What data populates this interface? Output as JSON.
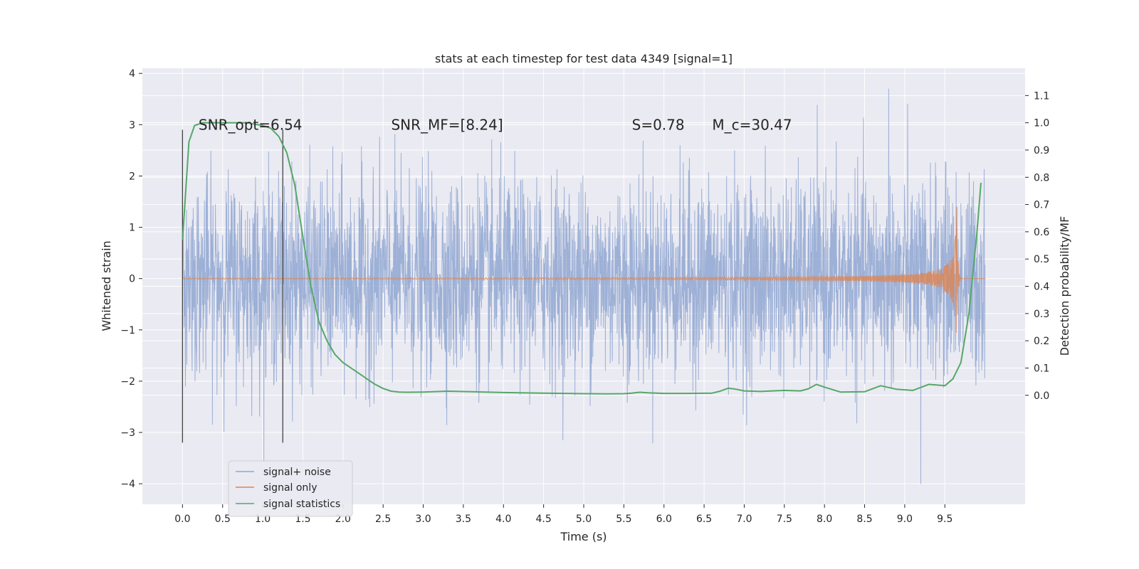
{
  "chart_data": {
    "type": "line",
    "title": "stats at each timestep for test data 4349 [signal=1]",
    "xlabel": "Time (s)",
    "ylabel": "Whitened strain",
    "y2label": "Detection probability/MF",
    "xlim": [
      -0.5,
      10.5
    ],
    "ylim": [
      -4.4,
      4.1
    ],
    "y2lim": [
      -0.4,
      1.2
    ],
    "xticks": [
      "0.0",
      "0.5",
      "1.0",
      "1.5",
      "2.0",
      "2.5",
      "3.0",
      "3.5",
      "4.0",
      "4.5",
      "5.0",
      "5.5",
      "6.0",
      "6.5",
      "7.0",
      "7.5",
      "8.0",
      "8.5",
      "9.0",
      "9.5"
    ],
    "yticks": [
      "−4",
      "−3",
      "−2",
      "−1",
      "0",
      "1",
      "2",
      "3",
      "4"
    ],
    "y2ticks": [
      "0.0",
      "0.1",
      "0.2",
      "0.3",
      "0.4",
      "0.5",
      "0.6",
      "0.7",
      "0.8",
      "0.9",
      "1.0",
      "1.1"
    ],
    "grid": true,
    "legend_position": "lower-left",
    "annotations": [
      {
        "text": "SNR_opt=6.54",
        "x": 0.2,
        "y": 2.9
      },
      {
        "text": "SNR_MF=[8.24]",
        "x": 2.6,
        "y": 2.9
      },
      {
        "text": "S=0.78",
        "x": 5.6,
        "y": 2.9
      },
      {
        "text": "M_c=30.47",
        "x": 6.6,
        "y": 2.9
      }
    ],
    "vlines": [
      {
        "x": 0.0,
        "y_range": [
          -3.2,
          2.9
        ]
      },
      {
        "x": 1.25,
        "y_range": [
          -3.2,
          2.9
        ]
      }
    ],
    "series": [
      {
        "name": "signal+ noise",
        "color": "#8fa6d1",
        "axis": "left",
        "x_range": [
          0,
          10
        ],
        "approx_amplitude": 1.3,
        "noise_peaks": [
          3.7,
          -4.0
        ]
      },
      {
        "name": "signal only",
        "color": "#dd8452",
        "axis": "left",
        "x_range": [
          0,
          10
        ],
        "chirp_peak": {
          "x": 9.65,
          "y": 1.4
        }
      },
      {
        "name": "signal statistics",
        "color": "#55a868",
        "axis": "right",
        "x": [
          0.0,
          0.08,
          0.15,
          0.25,
          0.4,
          0.6,
          0.8,
          1.0,
          1.1,
          1.2,
          1.3,
          1.4,
          1.5,
          1.6,
          1.7,
          1.8,
          1.9,
          2.0,
          2.1,
          2.2,
          2.3,
          2.4,
          2.5,
          2.6,
          2.7,
          2.8,
          3.0,
          3.3,
          3.6,
          4.0,
          4.5,
          5.0,
          5.3,
          5.5,
          5.6,
          5.7,
          5.8,
          6.0,
          6.3,
          6.6,
          6.7,
          6.8,
          6.9,
          7.0,
          7.2,
          7.5,
          7.7,
          7.8,
          7.9,
          8.0,
          8.2,
          8.5,
          8.7,
          8.9,
          9.1,
          9.3,
          9.5,
          9.6,
          9.7,
          9.8,
          9.9,
          9.95
        ],
        "values": [
          0.57,
          0.93,
          0.99,
          1.0,
          1.0,
          1.0,
          1.0,
          0.99,
          0.98,
          0.95,
          0.89,
          0.77,
          0.58,
          0.4,
          0.27,
          0.2,
          0.15,
          0.12,
          0.1,
          0.08,
          0.06,
          0.04,
          0.025,
          0.015,
          0.012,
          0.011,
          0.012,
          0.015,
          0.013,
          0.01,
          0.008,
          0.006,
          0.005,
          0.006,
          0.008,
          0.011,
          0.009,
          0.007,
          0.007,
          0.008,
          0.015,
          0.026,
          0.022,
          0.016,
          0.014,
          0.018,
          0.016,
          0.024,
          0.04,
          0.03,
          0.012,
          0.013,
          0.035,
          0.022,
          0.018,
          0.04,
          0.035,
          0.06,
          0.12,
          0.3,
          0.6,
          0.78
        ]
      }
    ]
  }
}
